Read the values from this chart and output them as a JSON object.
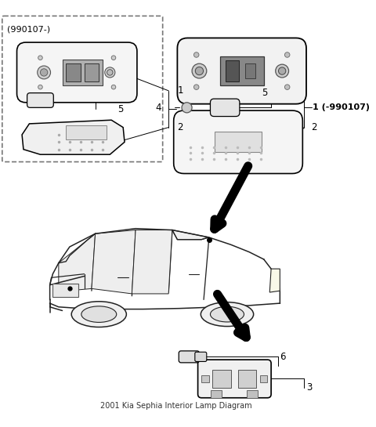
{
  "bg_color": "#ffffff",
  "line_color": "#000000",
  "gray_light": "#e8e8e8",
  "gray_mid": "#cccccc",
  "gray_dark": "#999999"
}
